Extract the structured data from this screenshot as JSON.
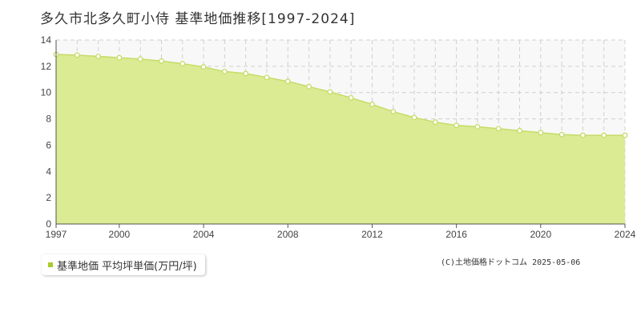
{
  "title": "多久市北多久町小侍 基準地価推移[1997-2024]",
  "legend": {
    "label": "基準地価 平均坪単価(万円/坪)"
  },
  "copyright": "(C)土地価格ドットコム 2025-05-06",
  "colors": {
    "area_fill": "#dbeb94",
    "line": "#c5dc66",
    "marker_fill": "#ffffff",
    "legend_swatch": "#a8cc2a",
    "plot_bg": "#f8f8f8",
    "grid": "#d0d0d0"
  },
  "chart_data": {
    "type": "area",
    "title": "多久市北多久町小侍 基準地価推移[1997-2024]",
    "xlabel": "",
    "ylabel": "",
    "x": [
      1997,
      1998,
      1999,
      2000,
      2001,
      2002,
      2003,
      2004,
      2005,
      2006,
      2007,
      2008,
      2009,
      2010,
      2011,
      2012,
      2013,
      2014,
      2015,
      2016,
      2017,
      2018,
      2019,
      2020,
      2021,
      2022,
      2023,
      2024
    ],
    "series": [
      {
        "name": "基準地価 平均坪単価(万円/坪)",
        "values": [
          12.9,
          12.85,
          12.75,
          12.65,
          12.55,
          12.4,
          12.2,
          11.95,
          11.6,
          11.45,
          11.15,
          10.85,
          10.45,
          10.05,
          9.6,
          9.1,
          8.55,
          8.1,
          7.75,
          7.5,
          7.4,
          7.25,
          7.1,
          6.95,
          6.8,
          6.75,
          6.75,
          6.75
        ]
      }
    ],
    "xlim": [
      1997,
      2024
    ],
    "ylim": [
      0,
      14
    ],
    "xticks": [
      1997,
      2000,
      2004,
      2008,
      2012,
      2016,
      2020,
      2024
    ],
    "yticks": [
      0,
      2,
      4,
      6,
      8,
      10,
      12,
      14
    ],
    "grid": true,
    "legend_position": "bottom-left"
  }
}
